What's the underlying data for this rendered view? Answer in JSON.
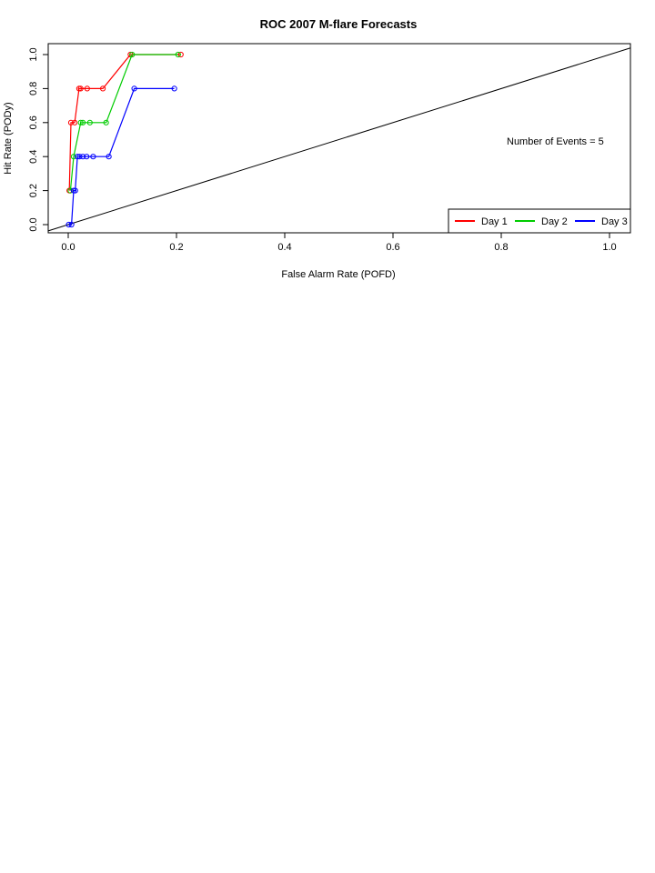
{
  "chart_data": {
    "type": "line",
    "title": "ROC  2007 M-flare Forecasts",
    "xlabel": "False Alarm Rate (POFD)",
    "ylabel": "Hit Rate (PODy)",
    "xlim": [
      0,
      1
    ],
    "ylim": [
      0,
      1
    ],
    "x_ticks": [
      "0.0",
      "0.2",
      "0.4",
      "0.6",
      "0.8",
      "1.0"
    ],
    "y_ticks": [
      "0.0",
      "0.2",
      "0.4",
      "0.6",
      "0.8",
      "1.0"
    ],
    "grid": false,
    "legend_position": "bottom-right",
    "annotation": "Number of Events =  5",
    "reference_line": {
      "x": [
        0,
        1
      ],
      "y": [
        0,
        1
      ]
    },
    "series": [
      {
        "name": "Day 1",
        "color": "#ff0000",
        "points": [
          [
            0.002,
            0.2
          ],
          [
            0.005,
            0.6
          ],
          [
            0.012,
            0.6
          ],
          [
            0.02,
            0.8
          ],
          [
            0.023,
            0.8
          ],
          [
            0.035,
            0.8
          ],
          [
            0.064,
            0.8
          ],
          [
            0.115,
            1.0
          ],
          [
            0.208,
            1.0
          ]
        ]
      },
      {
        "name": "Day 2",
        "color": "#00cc00",
        "points": [
          [
            0.004,
            0.2
          ],
          [
            0.01,
            0.4
          ],
          [
            0.023,
            0.6
          ],
          [
            0.027,
            0.6
          ],
          [
            0.04,
            0.6
          ],
          [
            0.07,
            0.6
          ],
          [
            0.118,
            1.0
          ],
          [
            0.203,
            1.0
          ]
        ]
      },
      {
        "name": "Day 3",
        "color": "#0000ff",
        "points": [
          [
            0.001,
            0.0
          ],
          [
            0.006,
            0.0
          ],
          [
            0.01,
            0.2
          ],
          [
            0.013,
            0.2
          ],
          [
            0.017,
            0.4
          ],
          [
            0.021,
            0.4
          ],
          [
            0.027,
            0.4
          ],
          [
            0.034,
            0.4
          ],
          [
            0.046,
            0.4
          ],
          [
            0.075,
            0.4
          ],
          [
            0.122,
            0.8
          ],
          [
            0.196,
            0.8
          ]
        ]
      }
    ]
  }
}
